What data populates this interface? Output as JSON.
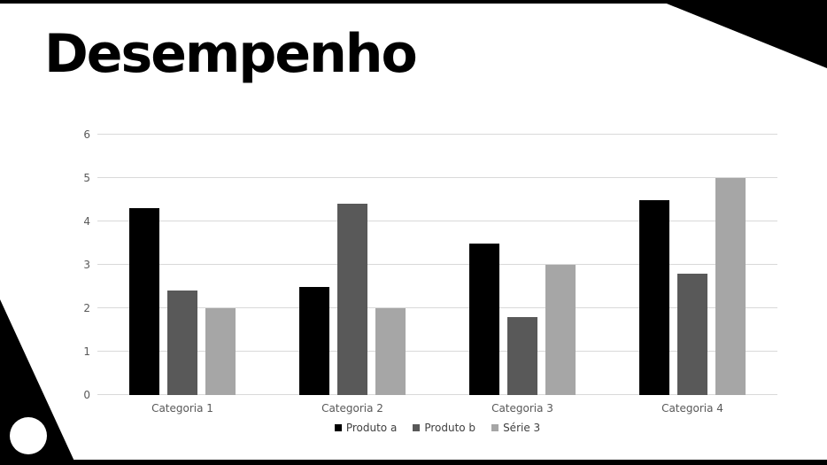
{
  "slide": {
    "title": "Desempenho",
    "background_color": "#ffffff",
    "accent_color": "#000000"
  },
  "chart_data": {
    "type": "bar",
    "title": "",
    "categories": [
      "Categoria 1",
      "Categoria 2",
      "Categoria 3",
      "Categoria 4"
    ],
    "series": [
      {
        "name": "Produto a",
        "color": "#000000",
        "values": [
          4.3,
          2.5,
          3.5,
          4.5
        ]
      },
      {
        "name": "Produto b",
        "color": "#595959",
        "values": [
          2.4,
          4.4,
          1.8,
          2.8
        ]
      },
      {
        "name": "Série 3",
        "color": "#a6a6a6",
        "values": [
          2.0,
          2.0,
          3.0,
          5.0
        ]
      }
    ],
    "ylim": [
      0,
      6
    ],
    "yticks": [
      0,
      1,
      2,
      3,
      4,
      5,
      6
    ],
    "grid": true,
    "legend_position": "bottom",
    "gridline_color": "#d9d9d9",
    "tick_label_color": "#595959",
    "legend_text_color": "#404040"
  }
}
